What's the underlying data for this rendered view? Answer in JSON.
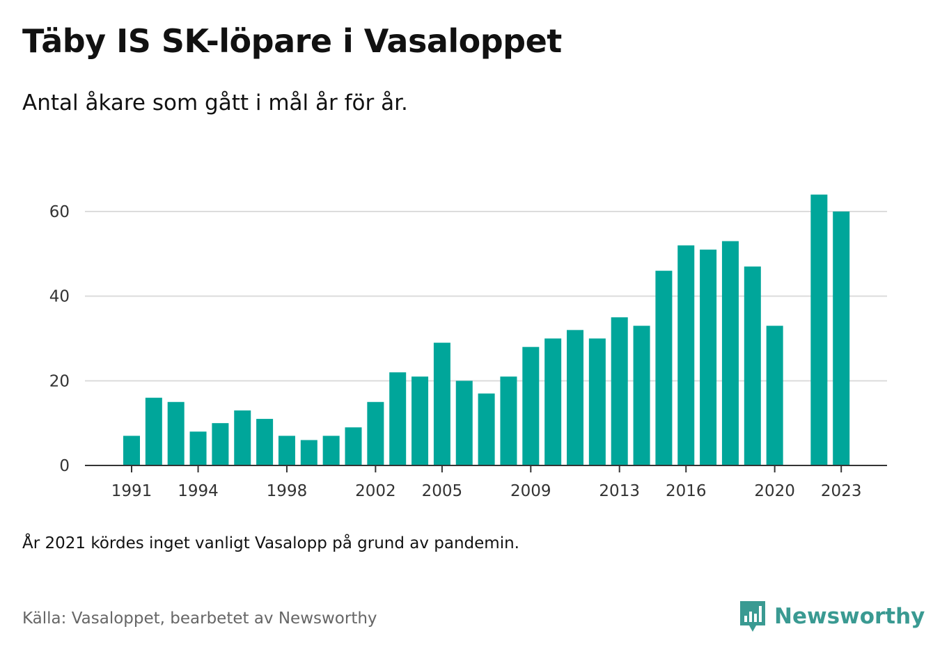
{
  "title": "Täby IS SK-löpare i Vasaloppet",
  "subtitle": "Antal åkare som gått i mål år för år.",
  "note": "År 2021 kördes inget vanligt Vasalopp på grund av pandemin.",
  "source": "Källa: Vasaloppet, bearbetet av Newsworthy",
  "brand": {
    "name": "Newsworthy",
    "icon": "newsworthy-logo-icon",
    "color": "#3a9a92"
  },
  "chart_data": {
    "type": "bar",
    "bar_color": "#00a69a",
    "categories": [
      1991,
      1992,
      1993,
      1994,
      1995,
      1996,
      1997,
      1998,
      1999,
      2000,
      2001,
      2002,
      2003,
      2004,
      2005,
      2006,
      2007,
      2008,
      2009,
      2010,
      2011,
      2012,
      2013,
      2014,
      2015,
      2016,
      2017,
      2018,
      2019,
      2020,
      2021,
      2022,
      2023
    ],
    "values": [
      7,
      16,
      15,
      8,
      10,
      13,
      11,
      7,
      6,
      7,
      9,
      15,
      22,
      21,
      29,
      20,
      17,
      21,
      28,
      30,
      32,
      30,
      35,
      33,
      46,
      52,
      51,
      53,
      47,
      33,
      null,
      64,
      60
    ],
    "x_tick_labels": [
      "1991",
      "1994",
      "1998",
      "2002",
      "2005",
      "2009",
      "2013",
      "2016",
      "2020",
      "2023"
    ],
    "y_ticks": [
      0,
      20,
      40,
      60
    ],
    "ylim": [
      0,
      70
    ],
    "grid": true
  }
}
